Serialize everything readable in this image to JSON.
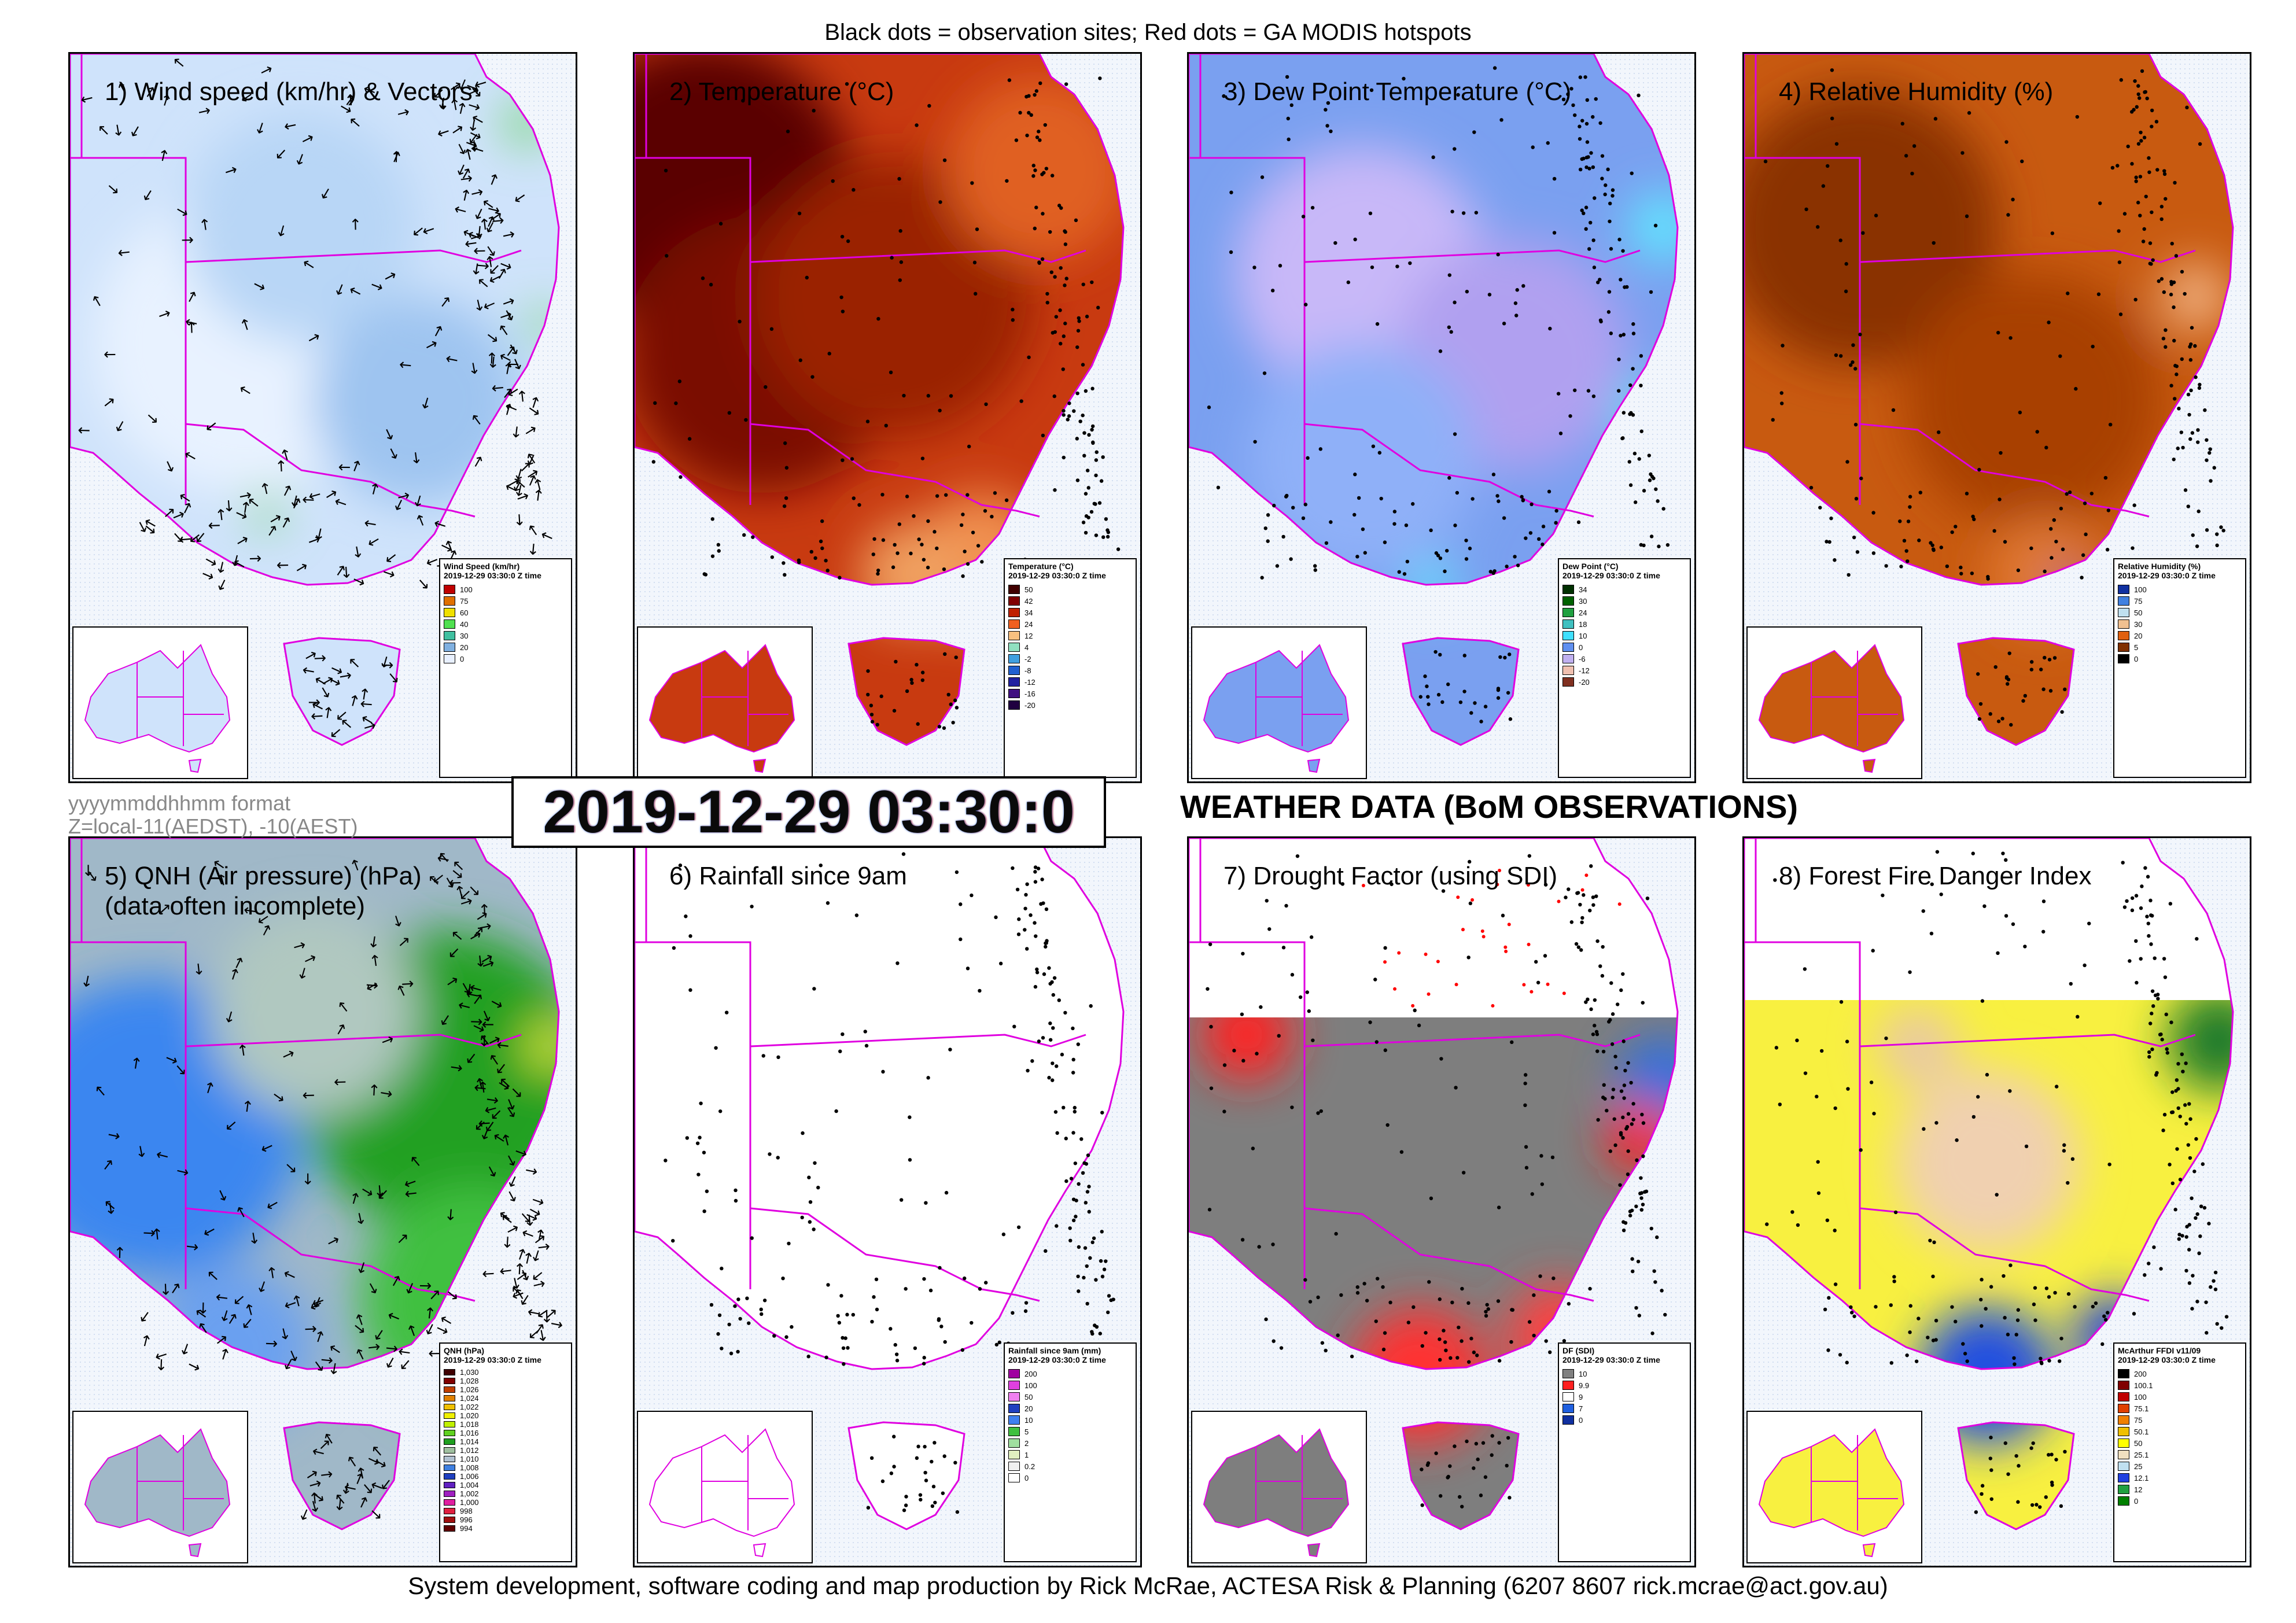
{
  "header": "Black dots = observation sites; Red dots = GA MODIS hotspots",
  "footer": "System development, software coding and map production by Rick McRae, ACTESA Risk & Planning (6207 8607 rick.mcrae@act.gov.au)",
  "format_note": "yyyymmddhhmm format",
  "zone_note": "Z=local-11(AEDST), -10(AEST)",
  "datetime": "2019-12-29 03:30:0",
  "main_title": "WEATHER DATA (BoM OBSERVATIONS)",
  "colors": {
    "border": "#e000e0",
    "sea": "#e8eef8"
  },
  "panels": [
    {
      "title": "1) Wind speed (km/hr) & Vectors",
      "legend_title": "Wind Speed (km/hr)",
      "legend_time": "2019-12-29 03:30:0 Z time",
      "legend_items": [
        {
          "label": "100",
          "color": "#c00000"
        },
        {
          "label": "75",
          "color": "#e07000"
        },
        {
          "label": "60",
          "color": "#f0e000"
        },
        {
          "label": "40",
          "color": "#50e050"
        },
        {
          "label": "30",
          "color": "#40c0a0"
        },
        {
          "label": "20",
          "color": "#80b0e0"
        },
        {
          "label": "0",
          "color": "#e8f0ff"
        }
      ]
    },
    {
      "title": "2) Temperature (°C)",
      "legend_title": "Temperature (°C)",
      "legend_time": "2019-12-29 03:30:0 Z time",
      "legend_items": [
        {
          "label": "50",
          "color": "#400000"
        },
        {
          "label": "42",
          "color": "#800000"
        },
        {
          "label": "34",
          "color": "#c02000"
        },
        {
          "label": "24",
          "color": "#f06020"
        },
        {
          "label": "12",
          "color": "#f8c080"
        },
        {
          "label": "4",
          "color": "#90e0c0"
        },
        {
          "label": "-2",
          "color": "#40a0e0"
        },
        {
          "label": "-8",
          "color": "#2060d0"
        },
        {
          "label": "-12",
          "color": "#2020a0"
        },
        {
          "label": "-16",
          "color": "#401080"
        },
        {
          "label": "-20",
          "color": "#200040"
        }
      ]
    },
    {
      "title": "3) Dew Point Temperature (°C)",
      "legend_title": "Dew Point (°C)",
      "legend_time": "2019-12-29 03:30:0 Z time",
      "legend_items": [
        {
          "label": "34",
          "color": "#003000"
        },
        {
          "label": "30",
          "color": "#006000"
        },
        {
          "label": "24",
          "color": "#20a040"
        },
        {
          "label": "18",
          "color": "#40c0c0"
        },
        {
          "label": "10",
          "color": "#40e0ff"
        },
        {
          "label": "0",
          "color": "#6090f0"
        },
        {
          "label": "-6",
          "color": "#c0b0f0"
        },
        {
          "label": "-12",
          "color": "#f0c0b0"
        },
        {
          "label": "-20",
          "color": "#803020"
        }
      ]
    },
    {
      "title": "4) Relative Humidity (%)",
      "legend_title": "Relative Humidity (%)",
      "legend_time": "2019-12-29 03:30:0 Z time",
      "legend_items": [
        {
          "label": "100",
          "color": "#1030a0"
        },
        {
          "label": "75",
          "color": "#4080e0"
        },
        {
          "label": "50",
          "color": "#c0e0f0"
        },
        {
          "label": "30",
          "color": "#f0c090"
        },
        {
          "label": "20",
          "color": "#e06010"
        },
        {
          "label": "5",
          "color": "#803000"
        },
        {
          "label": "0",
          "color": "#000000"
        }
      ]
    },
    {
      "title": "5) QNH (Air pressure) (hPa)\n(data often incomplete)",
      "legend_title": "QNH (hPa)",
      "legend_time": "2019-12-29 03:30:0 Z time",
      "legend_items": [
        {
          "label": "1,030",
          "color": "#400000"
        },
        {
          "label": "1,028",
          "color": "#800000"
        },
        {
          "label": "1,026",
          "color": "#c04000"
        },
        {
          "label": "1,024",
          "color": "#e08000"
        },
        {
          "label": "1,022",
          "color": "#f0c000"
        },
        {
          "label": "1,020",
          "color": "#f0f000"
        },
        {
          "label": "1,018",
          "color": "#c0f000"
        },
        {
          "label": "1,016",
          "color": "#60d020"
        },
        {
          "label": "1,014",
          "color": "#20a020"
        },
        {
          "label": "1,012",
          "color": "#a0c0a0"
        },
        {
          "label": "1,010",
          "color": "#b0c0d0"
        },
        {
          "label": "1,008",
          "color": "#4080e0"
        },
        {
          "label": "1,006",
          "color": "#2040c0"
        },
        {
          "label": "1,004",
          "color": "#6020c0"
        },
        {
          "label": "1,002",
          "color": "#a020c0"
        },
        {
          "label": "1,000",
          "color": "#e020a0"
        },
        {
          "label": "998",
          "color": "#e02040"
        },
        {
          "label": "996",
          "color": "#a01010"
        },
        {
          "label": "994",
          "color": "#600000"
        }
      ]
    },
    {
      "title": "6) Rainfall since 9am",
      "legend_title": "Rainfall since 9am (mm)",
      "legend_time": "2019-12-29 03:30:0 Z time",
      "legend_items": [
        {
          "label": "200",
          "color": "#a000a0"
        },
        {
          "label": "100",
          "color": "#e040e0"
        },
        {
          "label": "50",
          "color": "#f080f0"
        },
        {
          "label": "20",
          "color": "#2040c0"
        },
        {
          "label": "10",
          "color": "#4080f0"
        },
        {
          "label": "5",
          "color": "#40c040"
        },
        {
          "label": "2",
          "color": "#a0e0a0"
        },
        {
          "label": "1",
          "color": "#e0f0c0"
        },
        {
          "label": "0.2",
          "color": "#f0f0f0"
        },
        {
          "label": "0",
          "color": "#ffffff"
        }
      ]
    },
    {
      "title": "7) Drought Factor (using SDI)",
      "legend_title": "DF (SDI)",
      "legend_time": "2019-12-29 03:30:0 Z time",
      "legend_items": [
        {
          "label": "10",
          "color": "#808080"
        },
        {
          "label": "9.9",
          "color": "#ff2020"
        },
        {
          "label": "9",
          "color": "#ffffff"
        },
        {
          "label": "7",
          "color": "#2060e0"
        },
        {
          "label": "0",
          "color": "#1030a0"
        }
      ]
    },
    {
      "title": "8) Forest Fire Danger Index",
      "legend_title": "McArthur FFDI v11/09",
      "legend_time": "2019-12-29 03:30:0 Z time",
      "legend_items": [
        {
          "label": "200",
          "color": "#000000"
        },
        {
          "label": "100.1",
          "color": "#800000"
        },
        {
          "label": "100",
          "color": "#c00000"
        },
        {
          "label": "75.1",
          "color": "#e04000"
        },
        {
          "label": "75",
          "color": "#f08000"
        },
        {
          "label": "50.1",
          "color": "#f0c000"
        },
        {
          "label": "50",
          "color": "#ffff00"
        },
        {
          "label": "25.1",
          "color": "#f0e0c0"
        },
        {
          "label": "25",
          "color": "#c0e0f0"
        },
        {
          "label": "12.1",
          "color": "#2040e0"
        },
        {
          "label": "12",
          "color": "#20a040"
        },
        {
          "label": "0",
          "color": "#008000"
        }
      ]
    }
  ]
}
